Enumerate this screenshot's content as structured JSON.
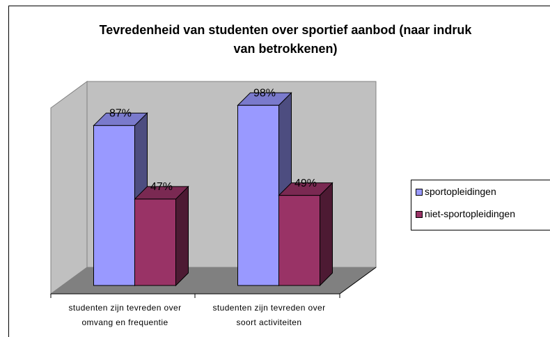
{
  "chart_data": {
    "type": "bar3d",
    "title": "Tevredenheid van studenten over sportief aanbod (naar indruk van betrokkenen)",
    "categories": [
      "studenten zijn tevreden over omvang en frequentie",
      "studenten zijn tevreden over soort activiteiten"
    ],
    "series": [
      {
        "name": "sportopleidingen",
        "color": "#9999ff",
        "values": [
          87,
          98
        ],
        "value_labels": [
          "87%",
          "98%"
        ]
      },
      {
        "name": "niet-sportopleidingen",
        "color": "#993366",
        "values": [
          47,
          49
        ],
        "value_labels": [
          "47%",
          "49%"
        ]
      }
    ],
    "ylim": [
      0,
      100
    ],
    "legend": "right"
  }
}
